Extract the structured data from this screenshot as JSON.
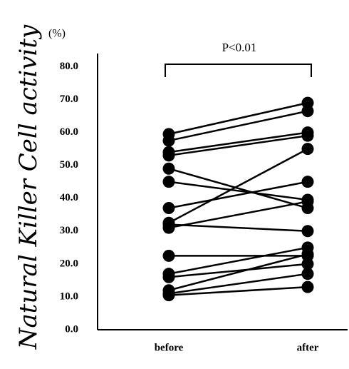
{
  "chart_data": {
    "type": "paired-dot",
    "y_label": "Natural Killer Cell activity",
    "y_unit": "(%)",
    "annotation": "P<0.01",
    "categories": [
      "before",
      "after"
    ],
    "pairs": [
      [
        59.5,
        69
      ],
      [
        57.5,
        66.5
      ],
      [
        54,
        60
      ],
      [
        53,
        59
      ],
      [
        49,
        37
      ],
      [
        45,
        39.5
      ],
      [
        37,
        45
      ],
      [
        32.5,
        55
      ],
      [
        31,
        39
      ],
      [
        32,
        30
      ],
      [
        22.5,
        22.5
      ],
      [
        17,
        25
      ],
      [
        16,
        20
      ],
      [
        12,
        23
      ],
      [
        11,
        17
      ],
      [
        10.5,
        13
      ]
    ],
    "color": "#000000",
    "ylim": [
      0,
      84
    ],
    "yticks": [
      {
        "value": 0,
        "label": "0.0"
      },
      {
        "value": 10,
        "label": "10.0"
      },
      {
        "value": 20,
        "label": "20.0"
      },
      {
        "value": 30,
        "label": "30.0"
      },
      {
        "value": 40,
        "label": "40.0"
      },
      {
        "value": 50,
        "label": "50.0"
      },
      {
        "value": 60,
        "label": "60.0"
      },
      {
        "value": 70,
        "label": "70.0"
      },
      {
        "value": 80,
        "label": "80.0"
      }
    ]
  }
}
